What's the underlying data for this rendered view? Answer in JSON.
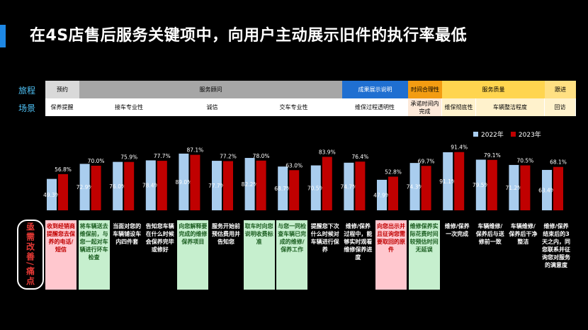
{
  "title": "在4S店售后服务关键项中，向用户主动展示旧件的执行率最低",
  "row_labels": {
    "journey": "旅程",
    "scene": "场景"
  },
  "side_label": "亟需改善/痛点",
  "colors": {
    "y2022": "#a9cdee",
    "y2023": "#c00000",
    "accent": "#1e88e5"
  },
  "stages": [
    {
      "label": "预约",
      "bg": "#d9d9d9"
    },
    {
      "label": "服务顾问",
      "bg": "#a6a6a6"
    },
    {
      "label": "成果展示说明",
      "bg": "#1f6fd1"
    },
    {
      "label": "时间合理性",
      "bg": "#f39c12"
    },
    {
      "label": "服务质量",
      "bg": "#ffd54f"
    },
    {
      "label": "跟进",
      "bg": "#ffe082"
    }
  ],
  "scenes": [
    {
      "label": "保养提醒",
      "bg": "#ffffff"
    },
    {
      "label": "接车专业性",
      "bg": "#ffffff"
    },
    {
      "label": "诚信",
      "bg": "#ffffff"
    },
    {
      "label": "交车专业性",
      "bg": "#ffffff"
    },
    {
      "label": "维保过程透明性",
      "bg": "#ffffff"
    },
    {
      "label": "承诺时间内完成",
      "bg": "#fde9d9"
    },
    {
      "label": "维保彻底性",
      "bg": "#fff2cc"
    },
    {
      "label": "车辆整洁程度",
      "bg": "#fff2cc"
    },
    {
      "label": "回访",
      "bg": "#fff2cc"
    }
  ],
  "chart_data": {
    "type": "bar",
    "series": [
      {
        "name": "2022年",
        "values": [
          49.3,
          72.9,
          76.0,
          78.4,
          89.0,
          77.7,
          82.2,
          68.7,
          70.5,
          74.7,
          47.9,
          74.3,
          91.1,
          79.5,
          71.2,
          63.4
        ]
      },
      {
        "name": "2023年",
        "values": [
          56.8,
          70.0,
          75.9,
          77.7,
          87.1,
          77.2,
          78.0,
          63.0,
          83.9,
          76.4,
          52.8,
          69.7,
          91.4,
          79.1,
          70.5,
          68.1
        ]
      }
    ],
    "unit": "%",
    "ylim": [
      0,
      100
    ],
    "categories": [
      "收到经销商提醒您去保养的电话/短信",
      "将车辆送去维保前，与您一起对车辆进行环车检查",
      "当面对您的车辆铺设车内四件套",
      "告知您车辆在什么时候会保养完毕或修好",
      "向您解释要完成的维修保养项目",
      "服务开始前预估费用并告知您",
      "取车时向您说明收费标准",
      "与您一同检查车辆已完成的维修/保养工作",
      "提醒您下次什么时候对车辆进行保养",
      "维修/保养过程中，能够实时观看维修保养进度",
      "向您出示并且征询您需要取回的原件",
      "维修保养实际花费时间较预估时间无延误",
      "维修/保养一次完成",
      "车辆维修/保养后与送修前一致",
      "车辆维修/保养后干净整洁",
      "维修/保养结束后的3天之内，同您联系并征询您对服务的满意度"
    ],
    "highlight": [
      "red",
      "green",
      "white",
      "white",
      "green",
      "white",
      "green",
      "green",
      "white",
      "white",
      "red",
      "green",
      "white",
      "white",
      "white",
      "white"
    ]
  }
}
